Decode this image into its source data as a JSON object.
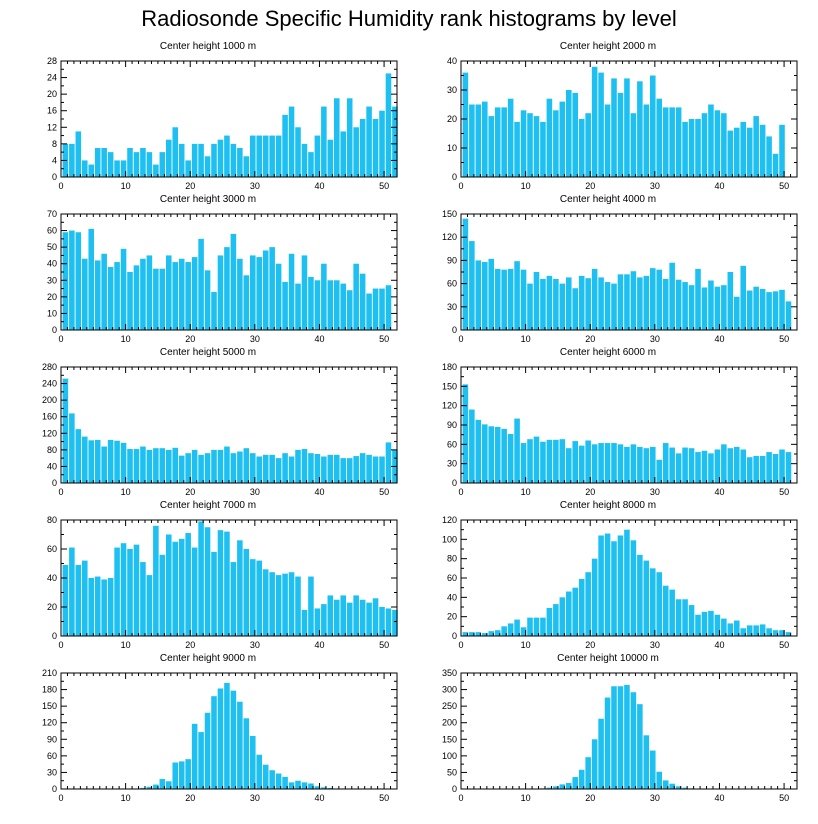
{
  "title": "Radiosonde Specific Humidity rank histograms by level",
  "chart_data": [
    {
      "type": "bar",
      "title": "Center height 1000 m",
      "xlabel": "",
      "ylabel": "",
      "xlim": [
        0,
        52
      ],
      "ylim": [
        0,
        28
      ],
      "xticks": [
        0,
        10,
        20,
        30,
        40,
        50
      ],
      "yticks": [
        0,
        4,
        8,
        12,
        16,
        20,
        24,
        28
      ],
      "values": [
        8,
        8,
        11,
        4,
        3,
        7,
        7,
        6,
        4,
        4,
        7,
        6,
        7,
        6,
        3,
        6,
        9,
        12,
        8,
        4,
        8,
        8,
        5,
        8,
        9,
        10,
        8,
        7,
        5,
        10,
        10,
        10,
        10,
        10,
        15,
        17,
        12,
        8,
        6,
        10,
        17,
        9,
        19,
        11,
        19,
        12,
        14,
        17,
        14,
        16,
        25,
        17
      ]
    },
    {
      "type": "bar",
      "title": "Center height 2000 m",
      "xlabel": "",
      "ylabel": "",
      "xlim": [
        0,
        52
      ],
      "ylim": [
        0,
        40
      ],
      "xticks": [
        0,
        10,
        20,
        30,
        40,
        50
      ],
      "yticks": [
        0,
        10,
        20,
        30,
        40
      ],
      "values": [
        36,
        25,
        25,
        26,
        21,
        24,
        24,
        27,
        19,
        23,
        22,
        21,
        19,
        27,
        23,
        26,
        30,
        29,
        20,
        22,
        38,
        36,
        25,
        34,
        29,
        34,
        22,
        33,
        25,
        35,
        27,
        24,
        24,
        24,
        19,
        20,
        20,
        22,
        25,
        23,
        22,
        16,
        17,
        19,
        17,
        21,
        18,
        14,
        8,
        18
      ]
    },
    {
      "type": "bar",
      "title": "Center height 3000 m",
      "xlabel": "",
      "ylabel": "",
      "xlim": [
        0,
        52
      ],
      "ylim": [
        0,
        70
      ],
      "xticks": [
        0,
        10,
        20,
        30,
        40,
        50
      ],
      "yticks": [
        0,
        10,
        20,
        30,
        40,
        50,
        60,
        70
      ],
      "values": [
        59,
        60,
        59,
        43,
        61,
        42,
        46,
        38,
        41,
        49,
        35,
        39,
        43,
        45,
        37,
        37,
        45,
        41,
        43,
        41,
        44,
        55,
        36,
        23,
        45,
        50,
        58,
        43,
        33,
        45,
        44,
        48,
        50,
        40,
        29,
        46,
        28,
        45,
        32,
        30,
        40,
        30,
        30,
        28,
        24,
        40,
        34,
        22,
        25,
        25,
        27
      ]
    },
    {
      "type": "bar",
      "title": "Center height 4000 m",
      "xlabel": "",
      "ylabel": "",
      "xlim": [
        0,
        52
      ],
      "ylim": [
        0,
        150
      ],
      "xticks": [
        0,
        10,
        20,
        30,
        40,
        50
      ],
      "yticks": [
        0,
        30,
        60,
        90,
        120,
        150
      ],
      "values": [
        144,
        115,
        90,
        88,
        92,
        79,
        78,
        79,
        89,
        78,
        60,
        75,
        66,
        70,
        66,
        60,
        68,
        54,
        70,
        67,
        79,
        68,
        62,
        60,
        72,
        72,
        76,
        68,
        70,
        80,
        78,
        66,
        87,
        65,
        62,
        58,
        79,
        55,
        64,
        56,
        58,
        75,
        43,
        83,
        51,
        56,
        53,
        49,
        50,
        52,
        37
      ]
    },
    {
      "type": "bar",
      "title": "Center height 5000 m",
      "xlabel": "",
      "ylabel": "",
      "xlim": [
        0,
        52
      ],
      "ylim": [
        0,
        280
      ],
      "xticks": [
        0,
        10,
        20,
        30,
        40,
        50
      ],
      "yticks": [
        0,
        40,
        80,
        120,
        160,
        200,
        240,
        280
      ],
      "values": [
        252,
        168,
        130,
        112,
        103,
        104,
        88,
        104,
        102,
        97,
        82,
        82,
        88,
        80,
        84,
        84,
        80,
        85,
        66,
        72,
        80,
        68,
        72,
        80,
        80,
        88,
        72,
        76,
        84,
        72,
        64,
        68,
        68,
        60,
        72,
        64,
        80,
        82,
        72,
        70,
        64,
        68,
        68,
        60,
        60,
        65,
        72,
        68,
        64,
        64,
        98,
        80
      ]
    },
    {
      "type": "bar",
      "title": "Center height 6000 m",
      "xlabel": "",
      "ylabel": "",
      "xlim": [
        0,
        52
      ],
      "ylim": [
        0,
        180
      ],
      "xticks": [
        0,
        10,
        20,
        30,
        40,
        50
      ],
      "yticks": [
        0,
        30,
        60,
        90,
        120,
        150,
        180
      ],
      "values": [
        153,
        114,
        98,
        91,
        88,
        87,
        84,
        76,
        100,
        62,
        68,
        72,
        64,
        67,
        67,
        68,
        54,
        65,
        58,
        66,
        60,
        62,
        62,
        62,
        60,
        56,
        60,
        56,
        54,
        56,
        36,
        62,
        55,
        46,
        55,
        54,
        48,
        50,
        46,
        52,
        60,
        54,
        56,
        52,
        40,
        42,
        42,
        48,
        45,
        52,
        48
      ]
    },
    {
      "type": "bar",
      "title": "Center height 7000 m",
      "xlabel": "",
      "ylabel": "",
      "xlim": [
        0,
        52
      ],
      "ylim": [
        0,
        80
      ],
      "xticks": [
        0,
        10,
        20,
        30,
        40,
        50
      ],
      "yticks": [
        0,
        20,
        40,
        60,
        80
      ],
      "values": [
        49,
        61,
        49,
        52,
        40,
        41,
        39,
        40,
        61,
        64,
        60,
        63,
        51,
        42,
        76,
        56,
        70,
        65,
        67,
        71,
        61,
        79,
        75,
        58,
        73,
        72,
        51,
        66,
        60,
        53,
        52,
        46,
        44,
        42,
        43,
        44,
        41,
        18,
        41,
        19,
        22,
        28,
        25,
        28,
        23,
        28,
        25,
        23,
        26,
        20,
        19,
        18
      ]
    },
    {
      "type": "bar",
      "title": "Center height 8000 m",
      "xlabel": "",
      "ylabel": "",
      "xlim": [
        0,
        52
      ],
      "ylim": [
        0,
        120
      ],
      "xticks": [
        0,
        10,
        20,
        30,
        40,
        50
      ],
      "yticks": [
        0,
        20,
        40,
        60,
        80,
        100,
        120
      ],
      "values": [
        4,
        4,
        4,
        3,
        5,
        6,
        10,
        13,
        17,
        9,
        19,
        19,
        19,
        29,
        33,
        40,
        46,
        50,
        59,
        66,
        80,
        104,
        106,
        98,
        104,
        110,
        99,
        84,
        78,
        70,
        66,
        52,
        48,
        38,
        38,
        32,
        22,
        25,
        26,
        22,
        18,
        13,
        16,
        8,
        11,
        11,
        12,
        8,
        6,
        6,
        4
      ]
    },
    {
      "type": "bar",
      "title": "Center height 9000 m",
      "xlabel": "",
      "ylabel": "",
      "xlim": [
        0,
        52
      ],
      "ylim": [
        0,
        210
      ],
      "xticks": [
        0,
        10,
        20,
        30,
        40,
        50
      ],
      "yticks": [
        0,
        30,
        60,
        90,
        120,
        150,
        180,
        210
      ],
      "values": [
        1,
        1,
        1,
        1,
        1,
        1,
        1,
        1,
        1,
        1,
        1,
        1,
        2,
        4,
        8,
        18,
        14,
        48,
        50,
        54,
        118,
        103,
        138,
        168,
        182,
        192,
        178,
        158,
        128,
        96,
        62,
        44,
        34,
        28,
        22,
        12,
        15,
        12,
        10,
        5,
        3,
        2,
        1,
        1,
        1,
        1,
        1,
        1,
        1,
        1,
        1
      ]
    },
    {
      "type": "bar",
      "title": "Center height 10000 m",
      "xlabel": "",
      "ylabel": "",
      "xlim": [
        0,
        52
      ],
      "ylim": [
        0,
        350
      ],
      "xticks": [
        0,
        10,
        20,
        30,
        40,
        50
      ],
      "yticks": [
        0,
        50,
        100,
        150,
        200,
        250,
        300,
        350
      ],
      "values": [
        1,
        1,
        1,
        1,
        1,
        1,
        1,
        1,
        1,
        1,
        1,
        1,
        2,
        4,
        8,
        14,
        18,
        36,
        58,
        96,
        150,
        212,
        276,
        310,
        310,
        314,
        292,
        256,
        162,
        116,
        52,
        26,
        16,
        8,
        4,
        2,
        1,
        1,
        1,
        1,
        1,
        1,
        1,
        1,
        1,
        1,
        1,
        1,
        1,
        1,
        1
      ]
    }
  ]
}
